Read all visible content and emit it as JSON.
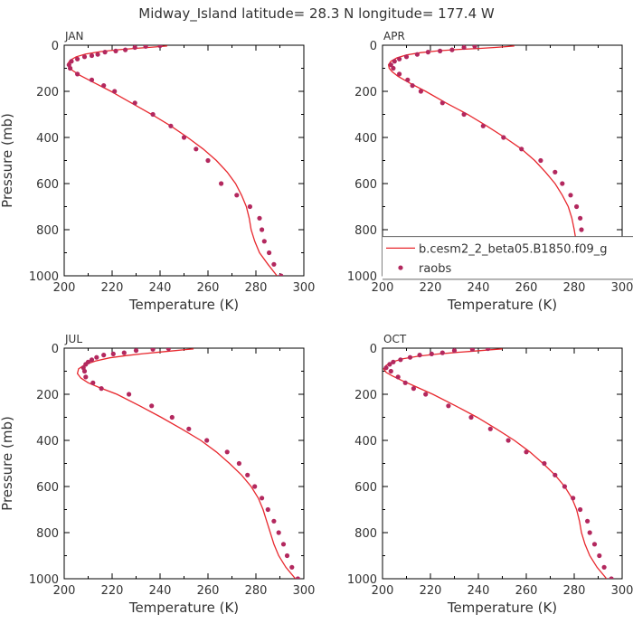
{
  "figure_title": "Midway_Island  latitude= 28.3 N longitude= 177.4 W",
  "colors": {
    "model": "#e8282e",
    "obs": "#b3285e",
    "axis": "#000000",
    "text": "#333333"
  },
  "legend": {
    "model_label": "b.cesm2_2_beta05.B1850.f09_g",
    "obs_label": "raobs"
  },
  "chart_data": [
    {
      "type": "line",
      "panel_label": "JAN",
      "xlabel": "Temperature (K)",
      "ylabel": "Pressure (mb)",
      "xlim": [
        200,
        300
      ],
      "ylim": [
        1000,
        0
      ],
      "xticks": [
        200,
        220,
        240,
        260,
        280,
        300
      ],
      "yticks": [
        0,
        200,
        400,
        600,
        800,
        1000
      ],
      "series": [
        {
          "kind": "line",
          "x": [
            288.8,
            285.0,
            281.5,
            279.5,
            278.0,
            277.2,
            276.0,
            274.0,
            271.5,
            268.0,
            263.5,
            258.0,
            251.5,
            244.5,
            236.5,
            228.0,
            219.5,
            212.0,
            206.5,
            203.5,
            202.0,
            201.5,
            202.5,
            205.0,
            209.0,
            215.0,
            222.0,
            229.0,
            235.0,
            240.0,
            243.0
          ],
          "y": [
            1000,
            950,
            900,
            850,
            800,
            750,
            700,
            650,
            600,
            550,
            500,
            450,
            400,
            350,
            300,
            250,
            200,
            160,
            130,
            110,
            95,
            80,
            65,
            50,
            38,
            28,
            20,
            14,
            10,
            6,
            3
          ]
        },
        {
          "kind": "scatter",
          "x": [
            290.5,
            287.5,
            285.5,
            283.5,
            282.5,
            281.5,
            277.5,
            272.0,
            265.5,
            260.0,
            255.0,
            250.0,
            244.5,
            237.0,
            229.5,
            221.0,
            216.5,
            211.5,
            205.5,
            202.5,
            202.0,
            203.0,
            205.5,
            208.5,
            211.5,
            214.0,
            217.0,
            221.5,
            225.5,
            229.5,
            234.0,
            240.0
          ],
          "y": [
            1000,
            950,
            900,
            850,
            800,
            750,
            700,
            650,
            600,
            500,
            450,
            400,
            350,
            300,
            250,
            200,
            175,
            150,
            125,
            100,
            85,
            70,
            60,
            50,
            45,
            40,
            30,
            25,
            20,
            10,
            5,
            2
          ]
        }
      ]
    },
    {
      "type": "line",
      "panel_label": "APR",
      "xlabel": "Temperature (K)",
      "ylabel": "",
      "xlim": [
        200,
        300
      ],
      "ylim": [
        1000,
        0
      ],
      "xticks": [
        200,
        220,
        240,
        260,
        280,
        300
      ],
      "yticks": [
        0,
        200,
        400,
        600,
        800,
        1000
      ],
      "series": [
        {
          "kind": "line",
          "x": [
            289.0,
            285.5,
            282.5,
            280.8,
            280.0,
            279.0,
            277.5,
            275.0,
            272.0,
            268.0,
            263.5,
            258.0,
            251.0,
            243.5,
            235.5,
            226.5,
            218.0,
            211.5,
            206.5,
            204.0,
            202.8,
            202.5,
            203.5,
            206.0,
            210.0,
            216.0,
            223.5,
            232.0,
            240.0,
            247.0,
            252.0,
            255.0
          ],
          "y": [
            1000,
            950,
            900,
            850,
            800,
            750,
            700,
            650,
            600,
            550,
            500,
            450,
            400,
            350,
            300,
            250,
            200,
            165,
            135,
            115,
            100,
            85,
            70,
            55,
            42,
            32,
            24,
            18,
            14,
            10,
            6,
            3
          ]
        },
        {
          "kind": "scatter",
          "x": [
            290.5,
            287.5,
            285.5,
            284.0,
            283.0,
            282.5,
            281.0,
            278.5,
            275.0,
            272.0,
            266.0,
            258.0,
            250.5,
            242.0,
            234.0,
            225.0,
            216.0,
            212.5,
            210.5,
            207.0,
            204.5,
            203.5,
            205.0,
            207.0,
            210.0,
            214.5,
            219.0,
            224.0,
            229.0,
            234.0,
            238.5
          ],
          "y": [
            1000,
            950,
            900,
            850,
            800,
            750,
            700,
            650,
            600,
            550,
            500,
            450,
            400,
            350,
            300,
            250,
            200,
            175,
            150,
            125,
            100,
            85,
            70,
            60,
            50,
            40,
            30,
            25,
            20,
            10,
            5
          ]
        }
      ]
    },
    {
      "type": "line",
      "panel_label": "JUL",
      "xlabel": "Temperature (K)",
      "ylabel": "Pressure (mb)",
      "xlim": [
        200,
        300
      ],
      "ylim": [
        1000,
        0
      ],
      "xticks": [
        200,
        220,
        240,
        260,
        280,
        300
      ],
      "yticks": [
        0,
        200,
        400,
        600,
        800,
        1000
      ],
      "series": [
        {
          "kind": "line",
          "x": [
            296.5,
            292.5,
            289.5,
            287.5,
            286.0,
            284.5,
            283.0,
            281.0,
            278.0,
            274.0,
            269.0,
            263.5,
            257.0,
            249.0,
            240.5,
            231.5,
            222.0,
            214.5,
            210.0,
            207.0,
            205.5,
            206.0,
            208.5,
            213.0,
            219.0,
            226.0,
            233.0,
            240.0,
            246.0,
            251.0,
            254.0
          ],
          "y": [
            1000,
            950,
            900,
            850,
            800,
            750,
            700,
            650,
            600,
            550,
            500,
            450,
            400,
            350,
            300,
            250,
            200,
            170,
            150,
            130,
            110,
            90,
            72,
            56,
            42,
            32,
            24,
            17,
            11,
            6,
            3
          ]
        },
        {
          "kind": "scatter",
          "x": [
            297.5,
            295.0,
            293.0,
            291.5,
            289.5,
            287.5,
            285.0,
            282.5,
            279.5,
            276.5,
            273.0,
            268.0,
            259.5,
            252.0,
            245.0,
            236.5,
            227.0,
            215.5,
            212.0,
            209.0,
            208.5,
            208.0,
            209.0,
            210.0,
            211.5,
            213.5,
            216.5,
            220.5,
            225.0,
            230.0,
            237.0,
            243.5
          ],
          "y": [
            1000,
            950,
            900,
            850,
            800,
            750,
            700,
            650,
            600,
            550,
            500,
            450,
            400,
            350,
            300,
            250,
            200,
            175,
            150,
            125,
            100,
            85,
            70,
            60,
            50,
            40,
            30,
            25,
            20,
            10,
            5,
            2
          ]
        }
      ]
    },
    {
      "type": "line",
      "panel_label": "OCT",
      "xlabel": "Temperature (K)",
      "ylabel": "",
      "xlim": [
        200,
        300
      ],
      "ylim": [
        1000,
        0
      ],
      "xticks": [
        200,
        220,
        240,
        260,
        280,
        300
      ],
      "yticks": [
        0,
        200,
        400,
        600,
        800,
        1000
      ],
      "series": [
        {
          "kind": "line",
          "x": [
            293.5,
            289.5,
            286.5,
            284.5,
            283.0,
            282.2,
            281.0,
            279.0,
            276.0,
            272.0,
            267.0,
            261.5,
            255.0,
            247.5,
            239.5,
            230.5,
            221.0,
            213.5,
            208.0,
            204.0,
            201.5,
            200.5,
            201.5,
            204.0,
            208.5,
            215.0,
            222.5,
            230.5,
            238.0,
            245.0,
            250.0
          ],
          "y": [
            1000,
            950,
            900,
            850,
            800,
            750,
            700,
            650,
            600,
            550,
            500,
            450,
            400,
            350,
            300,
            250,
            200,
            165,
            140,
            120,
            105,
            90,
            75,
            60,
            46,
            35,
            26,
            19,
            13,
            7,
            3
          ]
        },
        {
          "kind": "scatter",
          "x": [
            295.5,
            292.5,
            290.5,
            288.5,
            286.5,
            285.5,
            282.5,
            279.5,
            276.0,
            272.0,
            267.5,
            260.0,
            252.5,
            245.0,
            237.0,
            227.5,
            218.0,
            213.0,
            209.5,
            206.5,
            203.5,
            201.5,
            203.0,
            204.5,
            207.5,
            211.5,
            215.5,
            220.5,
            225.0,
            230.0,
            237.5,
            244.0
          ],
          "y": [
            1000,
            950,
            900,
            850,
            800,
            750,
            700,
            650,
            600,
            550,
            500,
            450,
            400,
            350,
            300,
            250,
            200,
            175,
            150,
            125,
            100,
            85,
            70,
            60,
            50,
            40,
            30,
            25,
            20,
            10,
            5,
            2
          ]
        }
      ]
    }
  ]
}
